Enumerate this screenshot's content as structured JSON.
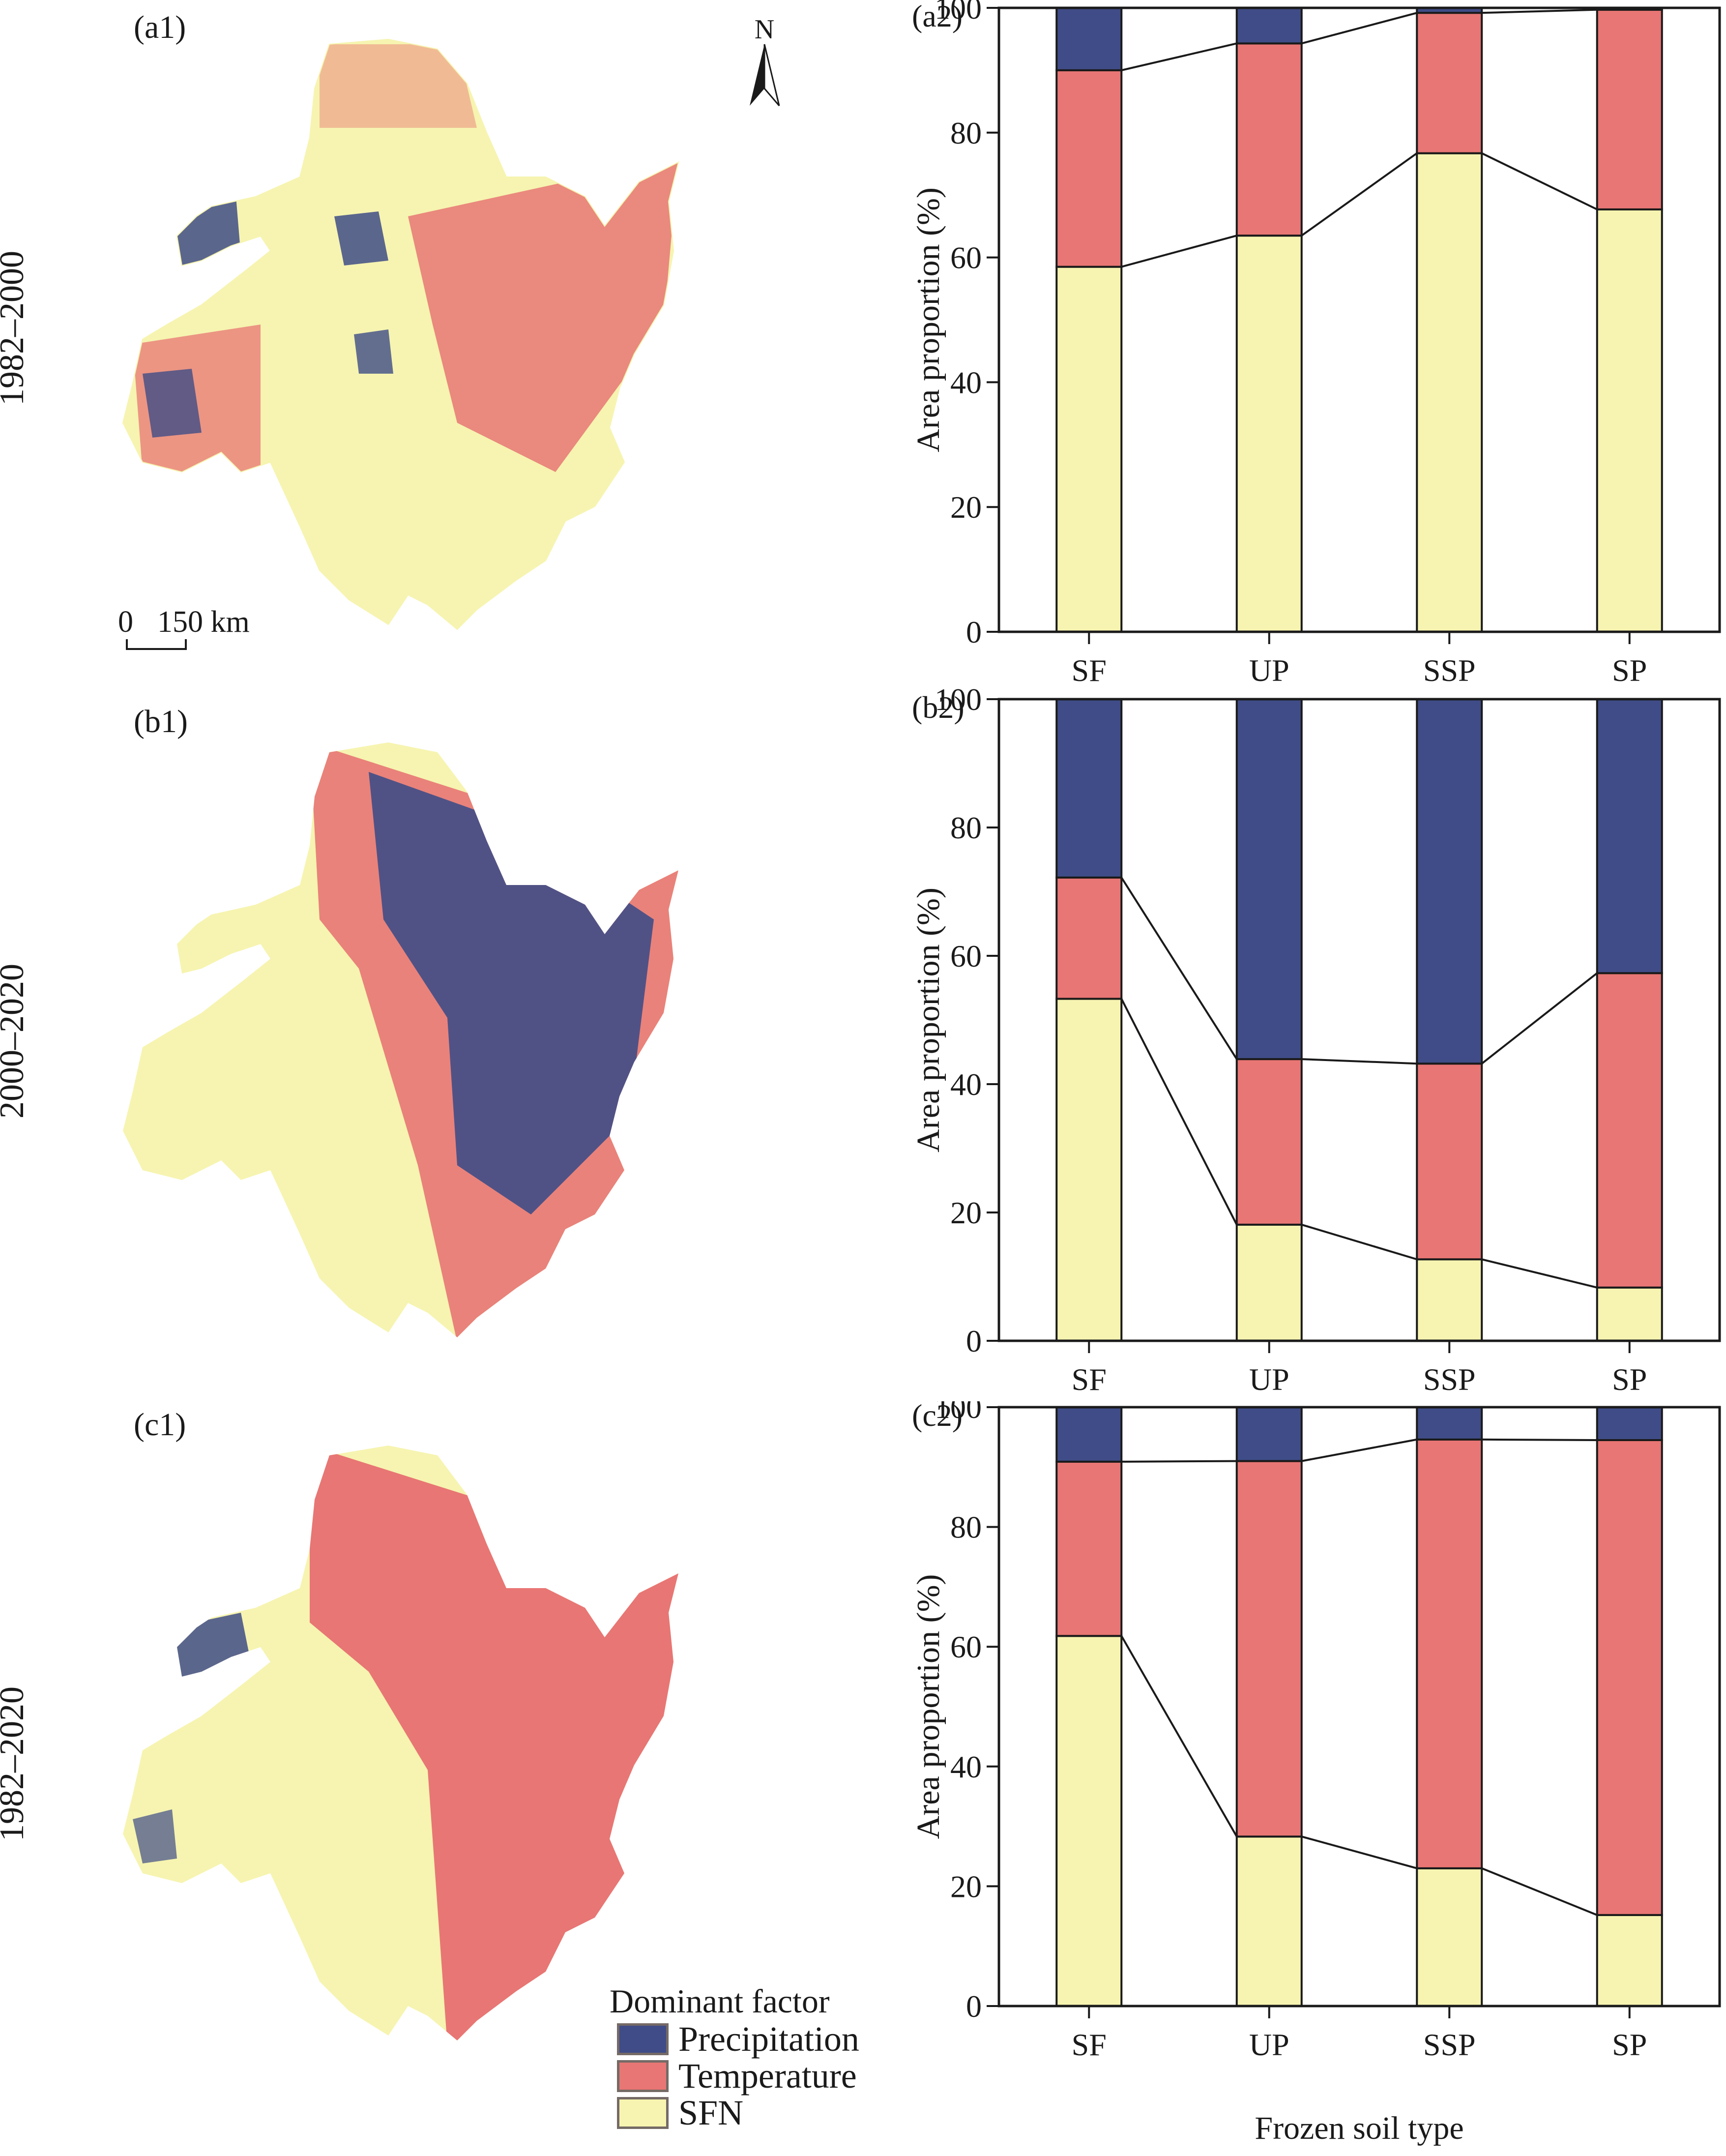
{
  "colors": {
    "precipitation": "#3f4c87",
    "temperature": "#e87674",
    "sfn": "#f6f4b0",
    "outline": "#1a1a1a"
  },
  "row_labels": [
    "1982–2000",
    "2000–2020",
    "1982–2020"
  ],
  "map_panels": [
    {
      "label": "(a1)",
      "period": "1982–2000"
    },
    {
      "label": "(b1)",
      "period": "2000–2020"
    },
    {
      "label": "(c1)",
      "period": "1982–2020"
    }
  ],
  "north_arrow": {
    "label": "N"
  },
  "scale_bar": {
    "start": "0",
    "end": "150 km"
  },
  "legend": {
    "title": "Dominant factor",
    "items": [
      {
        "label": "Precipitation",
        "key": "precipitation"
      },
      {
        "label": "Temperature",
        "key": "temperature"
      },
      {
        "label": "SFN",
        "key": "sfn"
      }
    ]
  },
  "chart_data": [
    {
      "type": "bar",
      "stacked": true,
      "label": "(a2)",
      "period": "1982–2000",
      "categories": [
        "SF",
        "UP",
        "SSP",
        "SP"
      ],
      "series": [
        {
          "name": "SFN",
          "values": [
            58.5,
            63.5,
            76.7,
            67.7
          ]
        },
        {
          "name": "Temperature",
          "values": [
            31.5,
            30.8,
            22.5,
            32.0
          ]
        },
        {
          "name": "Precipitation",
          "values": [
            10.0,
            5.7,
            0.8,
            0.3
          ]
        }
      ],
      "xlabel": "",
      "ylabel": "Area proportion (%)",
      "ylim": [
        0,
        100
      ],
      "yticks": [
        0,
        20,
        40,
        60,
        80,
        100
      ],
      "connector_lines": true
    },
    {
      "type": "bar",
      "stacked": true,
      "label": "(b2)",
      "period": "2000–2020",
      "categories": [
        "SF",
        "UP",
        "SSP",
        "SP"
      ],
      "series": [
        {
          "name": "SFN",
          "values": [
            53.3,
            18.1,
            12.7,
            8.3
          ]
        },
        {
          "name": "Temperature",
          "values": [
            18.9,
            25.8,
            30.5,
            49.0
          ]
        },
        {
          "name": "Precipitation",
          "values": [
            27.8,
            56.1,
            56.8,
            42.7
          ]
        }
      ],
      "xlabel": "",
      "ylabel": "Area proportion (%)",
      "ylim": [
        0,
        100
      ],
      "yticks": [
        0,
        20,
        40,
        60,
        80,
        100
      ],
      "connector_lines": true
    },
    {
      "type": "bar",
      "stacked": true,
      "label": "(c2)",
      "period": "1982–2020",
      "categories": [
        "SF",
        "UP",
        "SSP",
        "SP"
      ],
      "series": [
        {
          "name": "SFN",
          "values": [
            61.8,
            28.3,
            23.0,
            15.2
          ]
        },
        {
          "name": "Temperature",
          "values": [
            29.1,
            62.7,
            71.6,
            79.3
          ]
        },
        {
          "name": "Precipitation",
          "values": [
            9.1,
            9.0,
            5.4,
            5.5
          ]
        }
      ],
      "xlabel": "Frozen soil type",
      "ylabel": "Area proportion (%)",
      "ylim": [
        0,
        100
      ],
      "yticks": [
        0,
        20,
        40,
        60,
        80,
        100
      ],
      "connector_lines": true
    }
  ]
}
